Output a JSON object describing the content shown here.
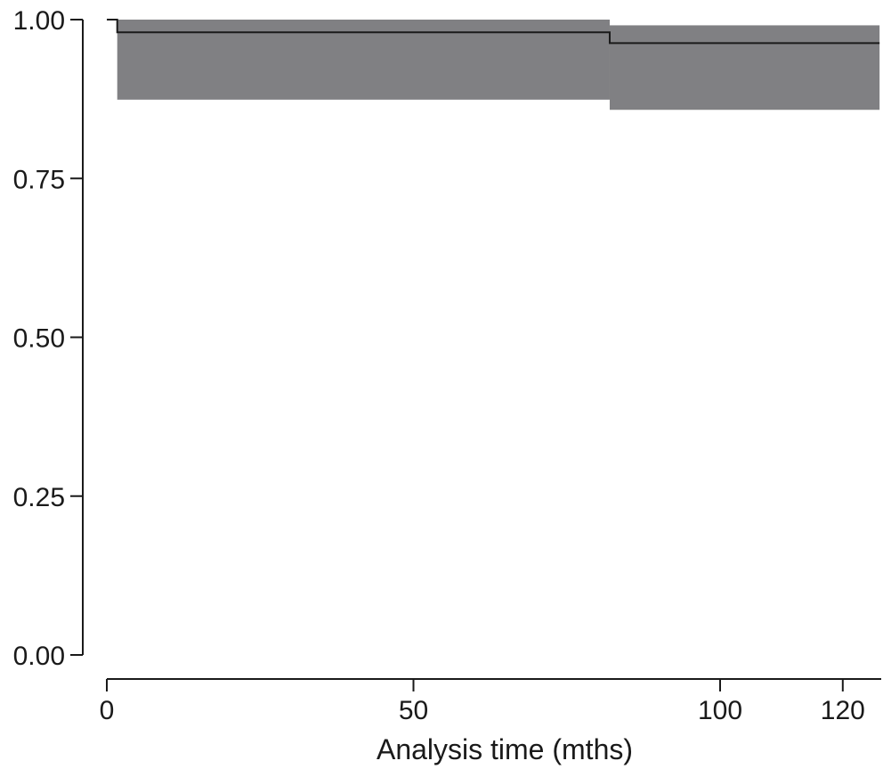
{
  "chart_data": {
    "type": "line",
    "subtype": "kaplan-meier step curve with confidence band",
    "title": "",
    "xlabel": "Analysis time (mths)",
    "ylabel": "",
    "xlim": [
      -2,
      126
    ],
    "ylim": [
      0,
      1.0
    ],
    "x_ticks": [
      0,
      50,
      100,
      120
    ],
    "x_tick_labels": [
      "0",
      "50",
      "100",
      "120"
    ],
    "y_ticks": [
      0.0,
      0.25,
      0.5,
      0.75,
      1.0
    ],
    "y_tick_labels": [
      "0.00",
      "0.25",
      "0.50",
      "0.75",
      "1.00"
    ],
    "grid": false,
    "legend": "none",
    "series": [
      {
        "step": "post",
        "x": [
          0,
          1.7,
          82,
          126
        ],
        "y": [
          1.0,
          0.98,
          0.963,
          0.963
        ]
      }
    ],
    "confidence_band": [
      {
        "x_start": 1.7,
        "x_end": 82,
        "lower": 0.874,
        "upper": 1.0
      },
      {
        "x_start": 82,
        "x_end": 126,
        "lower": 0.858,
        "upper": 0.991
      }
    ],
    "colors": {
      "band": "#808083",
      "line": "#1a1a1a",
      "axis": "#1a1a1a"
    }
  }
}
